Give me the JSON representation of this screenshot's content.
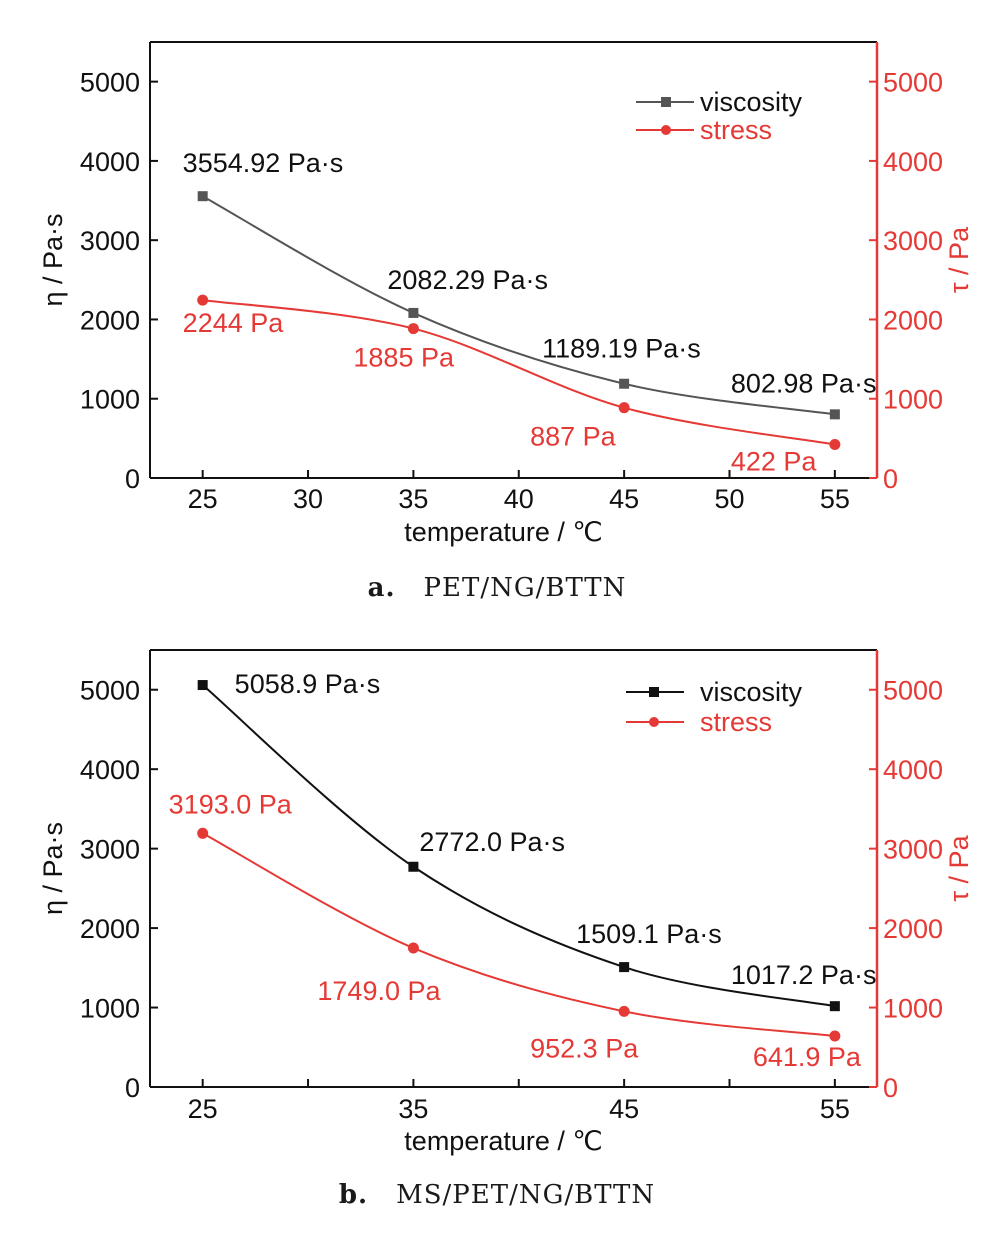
{
  "colors": {
    "viscosity_a": "#555555",
    "viscosity_b": "#111111",
    "stress": "#e53935",
    "axis_left": "#111111",
    "axis_right": "#e53935"
  },
  "chart_data": [
    {
      "type": "line",
      "caption_label": "a.",
      "caption_text": "PET/NG/BTTN",
      "xlabel": "temperature / ℃",
      "ylabel_left": "η / Pa·s",
      "ylabel_right": "τ / Pa",
      "xlim": [
        22.5,
        57
      ],
      "xticks": [
        25,
        30,
        35,
        40,
        45,
        50,
        55
      ],
      "ylim_left": [
        0,
        5500
      ],
      "ylim_right": [
        0,
        5500
      ],
      "yticks": [
        0,
        1000,
        2000,
        3000,
        4000,
        5000
      ],
      "legend": {
        "position": "top-right",
        "items": [
          "viscosity",
          "stress"
        ]
      },
      "series": [
        {
          "name": "viscosity",
          "axis": "left",
          "marker": "square",
          "x": [
            25,
            35,
            45,
            55
          ],
          "values": [
            3554.92,
            2082.29,
            1189.19,
            802.98
          ],
          "labels": [
            "3554.92 Pa·s",
            "2082.29 Pa·s",
            "1189.19 Pa·s",
            "802.98 Pa·s"
          ]
        },
        {
          "name": "stress",
          "axis": "right",
          "marker": "circle",
          "x": [
            25,
            35,
            45,
            55
          ],
          "values": [
            2244,
            1885,
            887,
            422
          ],
          "labels": [
            "2244 Pa",
            "1885 Pa",
            "887 Pa",
            "422 Pa"
          ]
        }
      ]
    },
    {
      "type": "line",
      "caption_label": "b.",
      "caption_text": "MS/PET/NG/BTTN",
      "xlabel": "temperature / ℃",
      "ylabel_left": "η / Pa·s",
      "ylabel_right": "τ / Pa",
      "xlim": [
        22.5,
        57
      ],
      "xticks": [
        25,
        35,
        45,
        55
      ],
      "xticks_minor": [
        30,
        40,
        50
      ],
      "ylim_left": [
        0,
        5500
      ],
      "ylim_right": [
        0,
        5500
      ],
      "yticks": [
        0,
        1000,
        2000,
        3000,
        4000,
        5000
      ],
      "legend": {
        "position": "top-right",
        "items": [
          "viscosity",
          "stress"
        ]
      },
      "series": [
        {
          "name": "viscosity",
          "axis": "left",
          "marker": "square",
          "x": [
            25,
            35,
            45,
            55
          ],
          "values": [
            5058.9,
            2772.0,
            1509.1,
            1017.2
          ],
          "labels": [
            "5058.9 Pa·s",
            "2772.0 Pa·s",
            "1509.1 Pa·s",
            "1017.2 Pa·s"
          ]
        },
        {
          "name": "stress",
          "axis": "right",
          "marker": "circle",
          "x": [
            25,
            35,
            45,
            55
          ],
          "values": [
            3193.0,
            1749.0,
            952.3,
            641.9
          ],
          "labels": [
            "3193.0 Pa",
            "1749.0 Pa",
            "952.3 Pa",
            "641.9 Pa"
          ]
        }
      ]
    }
  ]
}
